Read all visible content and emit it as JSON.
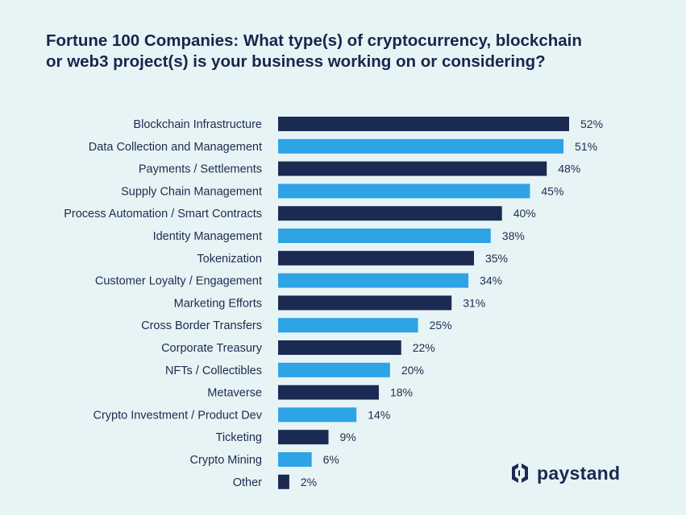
{
  "chart_data": {
    "type": "bar",
    "orientation": "horizontal",
    "title_lines": [
      "Fortune 100 Companies: What type(s) of cryptocurrency, blockchain",
      "or web3 project(s) is your business working on or considering?"
    ],
    "categories": [
      "Blockchain Infrastructure",
      "Data Collection and Management",
      "Payments / Settlements",
      "Supply Chain Management",
      "Process Automation / Smart Contracts",
      "Identity Management",
      "Tokenization",
      "Customer Loyalty / Engagement",
      "Marketing Efforts",
      "Cross Border Transfers",
      "Corporate Treasury",
      "NFTs / Collectibles",
      "Metaverse",
      "Crypto Investment / Product Dev",
      "Ticketing",
      "Crypto Mining",
      "Other"
    ],
    "values": [
      52,
      51,
      48,
      45,
      40,
      38,
      35,
      34,
      31,
      25,
      22,
      20,
      18,
      14,
      9,
      6,
      2
    ],
    "value_labels": [
      "52%",
      "51%",
      "48%",
      "45%",
      "40%",
      "38%",
      "35%",
      "34%",
      "31%",
      "25%",
      "22%",
      "20%",
      "18%",
      "14%",
      "9%",
      "6%",
      "2%"
    ],
    "unit": "%",
    "colors": [
      "#1b2a52",
      "#2ea3e6"
    ],
    "color_pattern": "alternating",
    "grid": false,
    "xlim": [
      0,
      52
    ]
  },
  "brand": {
    "name": "paystand",
    "color": "#1b2a52"
  },
  "background": "#e7f4f5"
}
